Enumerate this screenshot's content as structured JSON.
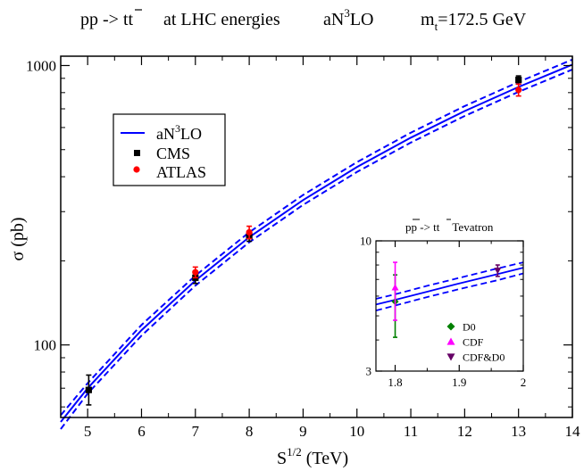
{
  "title": {
    "process": "pp -> tt",
    "energy": "at  LHC  energies",
    "order_a": "aN",
    "order_exp": "3",
    "order_b": "LO",
    "mass_a": "m",
    "mass_sub": "t",
    "mass_b": "=172.5 GeV"
  },
  "chart_data": [
    {
      "id": "main",
      "type": "line",
      "xlabel_base": "S",
      "xlabel_exp": "1/2",
      "xlabel_unit": " (TeV)",
      "ylabel": "σ (pb)",
      "xlim": [
        4.5,
        14
      ],
      "ylim": [
        55,
        1080
      ],
      "yscale": "log",
      "xticks": [
        5,
        6,
        7,
        8,
        9,
        10,
        11,
        12,
        13,
        14
      ],
      "xtick_labels": [
        "5",
        "6",
        "7",
        "8",
        "9",
        "10",
        "11",
        "12",
        "13",
        "14"
      ],
      "yticks": [
        100,
        1000
      ],
      "ytick_labels": [
        "100",
        "1000"
      ],
      "legend_position": "upper-left",
      "legend": {
        "theory_a": "aN",
        "theory_exp": "3",
        "theory_b": "LO",
        "cms": "CMS",
        "atlas": "ATLAS"
      },
      "theory": {
        "x": [
          4.5,
          5,
          6,
          7,
          8,
          9,
          10,
          11,
          12,
          13,
          14
        ],
        "central": [
          53,
          70,
          113,
          170,
          243,
          330,
          433,
          552,
          687,
          838,
          1008
        ],
        "upper": [
          56,
          73,
          118,
          177,
          253,
          344,
          451,
          575,
          716,
          873,
          1050
        ],
        "lower": [
          50,
          67,
          108,
          163,
          233,
          317,
          416,
          530,
          660,
          805,
          968
        ]
      },
      "series": [
        {
          "name": "CMS",
          "color": "#000000",
          "marker": "square",
          "x": [
            5.02,
            7,
            8,
            13
          ],
          "y": [
            69,
            174,
            245,
            888
          ],
          "yerr_low": [
            8,
            8,
            10,
            30
          ],
          "yerr_high": [
            9,
            8,
            10,
            30
          ]
        },
        {
          "name": "ATLAS",
          "color": "#ff0000",
          "marker": "circle",
          "x": [
            7,
            8,
            13
          ],
          "y": [
            182,
            253,
            818
          ],
          "yerr_low": [
            8,
            13,
            40
          ],
          "yerr_high": [
            8,
            13,
            40
          ]
        }
      ]
    },
    {
      "id": "inset",
      "type": "line",
      "title_a": "pp",
      "title_b": " -> tt",
      "title_c": "Tevatron",
      "xlim": [
        1.77,
        2.0
      ],
      "ylim": [
        3,
        10
      ],
      "yscale": "log",
      "xticks": [
        1.8,
        1.9,
        2.0
      ],
      "xtick_labels": [
        "1.8",
        "1.9",
        "2"
      ],
      "yticks": [
        3,
        10
      ],
      "ytick_labels": [
        "3",
        "10"
      ],
      "legend_position": "lower-right",
      "theory": {
        "x": [
          1.77,
          1.8,
          1.85,
          1.9,
          1.96,
          2.0
        ],
        "central": [
          5.55,
          5.8,
          6.25,
          6.75,
          7.35,
          7.8
        ],
        "upper": [
          5.85,
          6.1,
          6.6,
          7.1,
          7.75,
          8.2
        ],
        "lower": [
          5.25,
          5.5,
          5.95,
          6.4,
          6.95,
          7.4
        ]
      },
      "series": [
        {
          "name": "D0",
          "color": "#008000",
          "marker": "diamond",
          "x": [
            1.8
          ],
          "y": [
            5.7
          ],
          "yerr_low": [
            1.6
          ],
          "yerr_high": [
            1.6
          ]
        },
        {
          "name": "CDF",
          "color": "#ff00ff",
          "marker": "triangle-up",
          "x": [
            1.8
          ],
          "y": [
            6.5
          ],
          "yerr_low": [
            1.7
          ],
          "yerr_high": [
            1.7
          ]
        },
        {
          "name": "CDF&D0",
          "color": "#660066",
          "marker": "triangle-down",
          "x": [
            1.96
          ],
          "y": [
            7.6
          ],
          "yerr_low": [
            0.4
          ],
          "yerr_high": [
            0.4
          ]
        }
      ]
    }
  ],
  "colors": {
    "theory": "#0000ff",
    "axis": "#000000"
  }
}
